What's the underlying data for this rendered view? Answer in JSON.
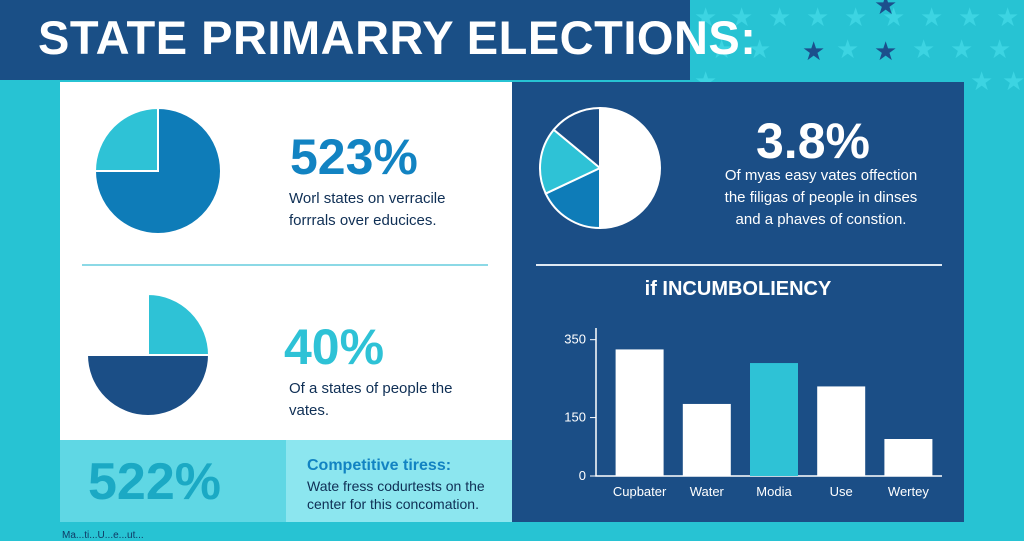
{
  "header": {
    "title": "STATE PRIMARRY ELECTIONS:"
  },
  "colors": {
    "navy": "#1b4e86",
    "teal": "#27c3d3",
    "medium_blue": "#0e7cb8",
    "light_teal": "#2ec2d6"
  },
  "stats": [
    {
      "value": "523%",
      "description": "Worl states on verracile\nforrrals over educices."
    },
    {
      "value": "40%",
      "description": "Of a states of people the\nvates."
    },
    {
      "value": "522%",
      "label": "Competitive tiress:",
      "description": "Wate fress codurtests on the\ncenter for this concomation."
    },
    {
      "value": "3.8%",
      "description": "Of myas easy vates offection\nthe filigas of people in dinses\nand a phaves of constion."
    }
  ],
  "pie_charts": [
    {
      "slices": [
        {
          "value": 75,
          "color": "#0e7cb8"
        },
        {
          "value": 25,
          "color": "#2ec2d6"
        }
      ]
    },
    {
      "slices": [
        {
          "value": 25,
          "color": "#2ec2d6"
        },
        {
          "value": 50,
          "color": "#1b4e86"
        },
        {
          "value": 25,
          "color": "#ffffff"
        }
      ]
    },
    {
      "slices": [
        {
          "value": 50,
          "color": "#ffffff"
        },
        {
          "value": 18,
          "color": "#0e7cb8"
        },
        {
          "value": 18,
          "color": "#2ec2d6"
        },
        {
          "value": 14,
          "color": "#1b4e86"
        }
      ]
    }
  ],
  "chart_data": {
    "type": "bar",
    "title": "if INCUMBOLIENCY",
    "categories": [
      "Cupbater",
      "Water",
      "Modia",
      "Use",
      "Wertey"
    ],
    "values": [
      325,
      185,
      290,
      230,
      95
    ],
    "bar_colors": [
      "#ffffff",
      "#ffffff",
      "#2ec2d6",
      "#ffffff",
      "#ffffff"
    ],
    "y_ticks": [
      0,
      150,
      350
    ],
    "y_tick_labels": [
      "0",
      "150",
      "350"
    ],
    "ylim": [
      0,
      380
    ],
    "xlabel": "",
    "ylabel": "",
    "grid": false
  },
  "footer": {
    "note": "Ma...ti...U...e...ut..."
  }
}
